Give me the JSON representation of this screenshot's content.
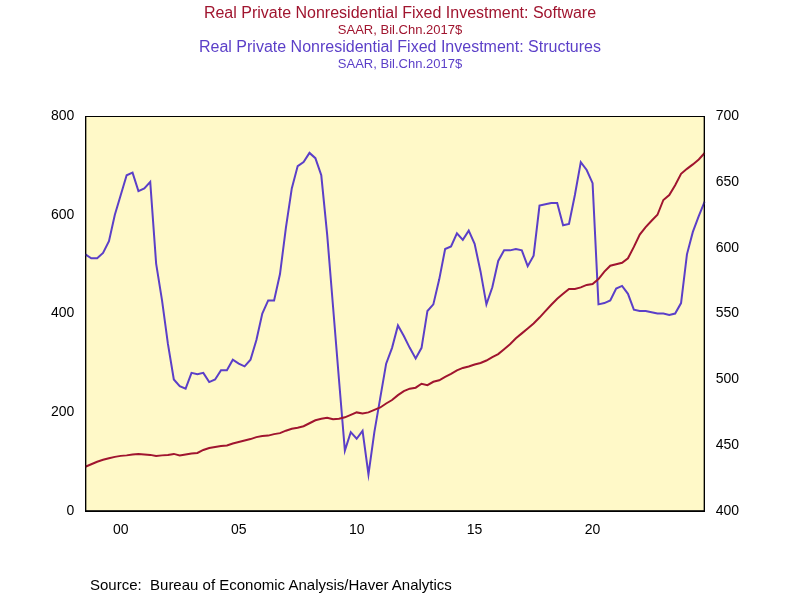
{
  "chart_data": {
    "type": "line",
    "categories": [
      null,
      null,
      null,
      null,
      null,
      null,
      "00",
      null,
      null,
      null,
      null,
      null,
      null,
      null,
      null,
      null,
      null,
      null,
      null,
      null,
      null,
      null,
      null,
      null,
      null,
      null,
      "05",
      null,
      null,
      null,
      null,
      null,
      null,
      null,
      null,
      null,
      null,
      null,
      null,
      null,
      null,
      null,
      null,
      null,
      null,
      null,
      "10",
      null,
      null,
      null,
      null,
      null,
      null,
      null,
      null,
      null,
      null,
      null,
      null,
      null,
      null,
      null,
      null,
      null,
      null,
      null,
      "15",
      null,
      null,
      null,
      null,
      null,
      null,
      null,
      null,
      null,
      null,
      null,
      null,
      null,
      null,
      null,
      null,
      null,
      null,
      null,
      "20",
      null,
      null,
      null,
      null,
      null,
      null,
      null,
      null,
      null,
      null,
      null,
      null,
      null,
      null,
      null,
      null,
      null,
      null,
      null
    ],
    "series": [
      {
        "name": "Real Private Nonresidential Fixed Investment: Software",
        "subtitle": "SAAR, Bil.Chn.2017$",
        "color": "#A0152F",
        "values": [
          90,
          95,
          100,
          104,
          107,
          110,
          112,
          113,
          115,
          116,
          115,
          114,
          112,
          113,
          114,
          116,
          113,
          115,
          117,
          118,
          124,
          128,
          130,
          132,
          133,
          137,
          140,
          143,
          146,
          150,
          152,
          153,
          156,
          158,
          163,
          167,
          169,
          172,
          178,
          184,
          187,
          189,
          186,
          187,
          190,
          195,
          200,
          198,
          200,
          205,
          210,
          218,
          225,
          235,
          243,
          248,
          250,
          258,
          255,
          262,
          265,
          272,
          278,
          285,
          290,
          293,
          297,
          300,
          305,
          312,
          318,
          328,
          338,
          350,
          360,
          370,
          380,
          392,
          405,
          418,
          430,
          440,
          450,
          450,
          453,
          458,
          460,
          470,
          485,
          497,
          500,
          503,
          512,
          535,
          560,
          575,
          588,
          600,
          630,
          640,
          660,
          683,
          693,
          702,
          712,
          725
        ]
      },
      {
        "name": "Real Private Nonresidential Fixed Investment: Structures",
        "subtitle": "SAAR, Bil.Chn.2017$",
        "color": "#5B3FC8",
        "axis": "y2",
        "values": [
          595,
          592,
          592,
          596,
          605,
          625,
          640,
          655,
          657,
          643,
          645,
          650,
          588,
          560,
          527,
          500,
          495,
          493,
          505,
          504,
          505,
          498,
          500,
          507,
          507,
          515,
          512,
          510,
          515,
          530,
          550,
          560,
          560,
          580,
          615,
          645,
          662,
          665,
          672,
          668,
          655,
          610,
          555,
          500,
          446,
          460,
          455,
          461,
          428,
          460,
          486,
          512,
          524,
          541,
          533,
          524,
          516,
          524,
          552,
          557,
          576,
          599,
          601,
          611,
          606,
          613,
          603,
          582,
          557,
          570,
          590,
          598,
          598,
          599,
          598,
          586,
          594,
          632,
          633,
          634,
          634,
          617,
          618,
          640,
          665,
          659,
          649,
          557,
          558,
          560,
          569,
          571,
          565,
          553,
          552,
          552,
          551,
          550,
          550,
          549,
          550,
          558,
          595,
          612,
          624,
          635
        ]
      }
    ],
    "ylim": [
      0,
      800
    ],
    "yticks": [
      0,
      200,
      400,
      600,
      800
    ],
    "y2lim": [
      400,
      700
    ],
    "y2ticks": [
      400,
      450,
      500,
      550,
      600,
      650,
      700
    ],
    "grid": false,
    "source": "Source:  Bureau of Economic Analysis/Haver Analytics"
  }
}
